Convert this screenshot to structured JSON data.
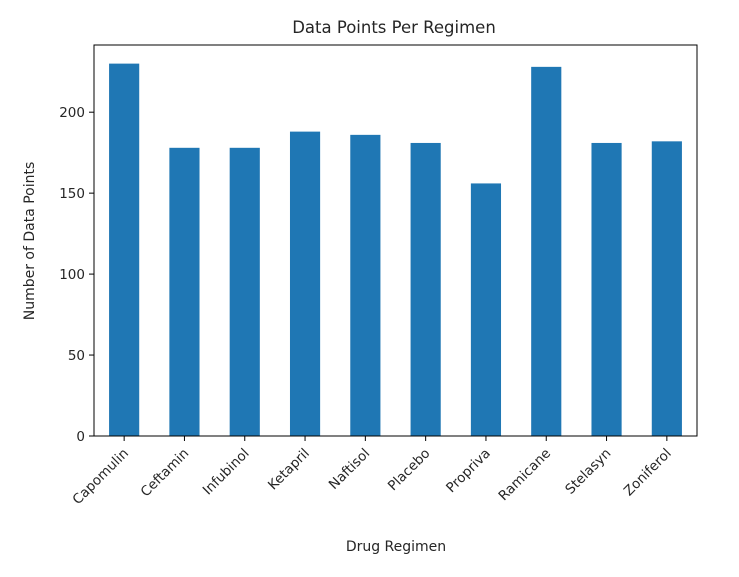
{
  "chart_data": {
    "type": "bar",
    "title": "Data Points Per Regimen",
    "xlabel": "Drug Regimen",
    "ylabel": "Number of Data Points",
    "categories": [
      "Capomulin",
      "Ceftamin",
      "Infubinol",
      "Ketapril",
      "Naftisol",
      "Placebo",
      "Propriva",
      "Ramicane",
      "Stelasyn",
      "Zoniferol"
    ],
    "values": [
      230,
      178,
      178,
      188,
      186,
      181,
      156,
      228,
      181,
      182
    ],
    "ylim": [
      0,
      241.5
    ],
    "yticks": [
      0,
      50,
      100,
      150,
      200
    ],
    "grid": false,
    "bar_color": "#1f77b4"
  }
}
